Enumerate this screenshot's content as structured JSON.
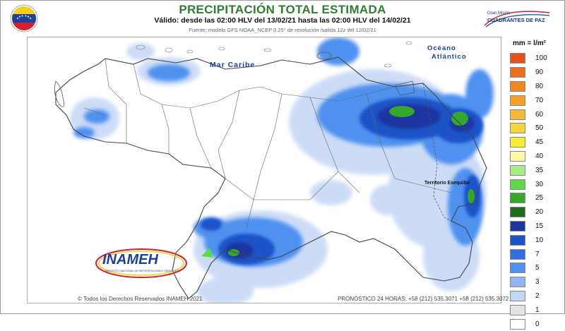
{
  "header": {
    "title": "PRECIPITACIÓN TOTAL ESTIMADA",
    "subtitle": "Válido: desde las 02:00 HLV del 13/02/21 hasta las 02:00 HLV del 14/02/21",
    "source": "Fuente: modelo GFS NOAA_NCEP 0.25° de resolución /salida 12z del 12/02/21"
  },
  "logos": {
    "gmcp_line1": "Gran Misión",
    "gmcp_line2": "CUADRANTES DE PAZ",
    "inameh_brand": "INAMEH",
    "inameh_small": "INSTITUTO NACIONAL DE METEOROLOGÍA E HIDROLOGÍA"
  },
  "map": {
    "labels": {
      "sea": "Mar Caribe",
      "ocean_line1": "Océano",
      "ocean_line2": "Atlántico",
      "esequibo": "Territorio Esequibo"
    }
  },
  "legend": {
    "title": "mm = l/m²",
    "items": [
      {
        "label": "100",
        "color": "#e8501e"
      },
      {
        "label": "90",
        "color": "#ec6f1e"
      },
      {
        "label": "80",
        "color": "#ef8a22"
      },
      {
        "label": "70",
        "color": "#f2a02a"
      },
      {
        "label": "60",
        "color": "#f6b83a"
      },
      {
        "label": "50",
        "color": "#f8d23a"
      },
      {
        "label": "45",
        "color": "#f5ee35"
      },
      {
        "label": "40",
        "color": "#fcf9a6"
      },
      {
        "label": "35",
        "color": "#a8ec88"
      },
      {
        "label": "30",
        "color": "#5fd84a"
      },
      {
        "label": "25",
        "color": "#35a82c"
      },
      {
        "label": "20",
        "color": "#1e6b1e"
      },
      {
        "label": "15",
        "color": "#1c36a0"
      },
      {
        "label": "10",
        "color": "#1f52c8"
      },
      {
        "label": "7",
        "color": "#2f6fe0"
      },
      {
        "label": "5",
        "color": "#4f91ef"
      },
      {
        "label": "3",
        "color": "#8fb6f3"
      },
      {
        "label": "2",
        "color": "#c4d6f6"
      },
      {
        "label": "1",
        "color": "#e4e4e4"
      },
      {
        "label": "0",
        "color": "#ffffff"
      }
    ]
  },
  "footer": {
    "copyright": "© Todos los Derechos Reservados INAMEH 2021",
    "forecast": "PRONÓSTICO 24 HORAS: +58 (212) 535.3071 +58 (212) 535.3072"
  }
}
